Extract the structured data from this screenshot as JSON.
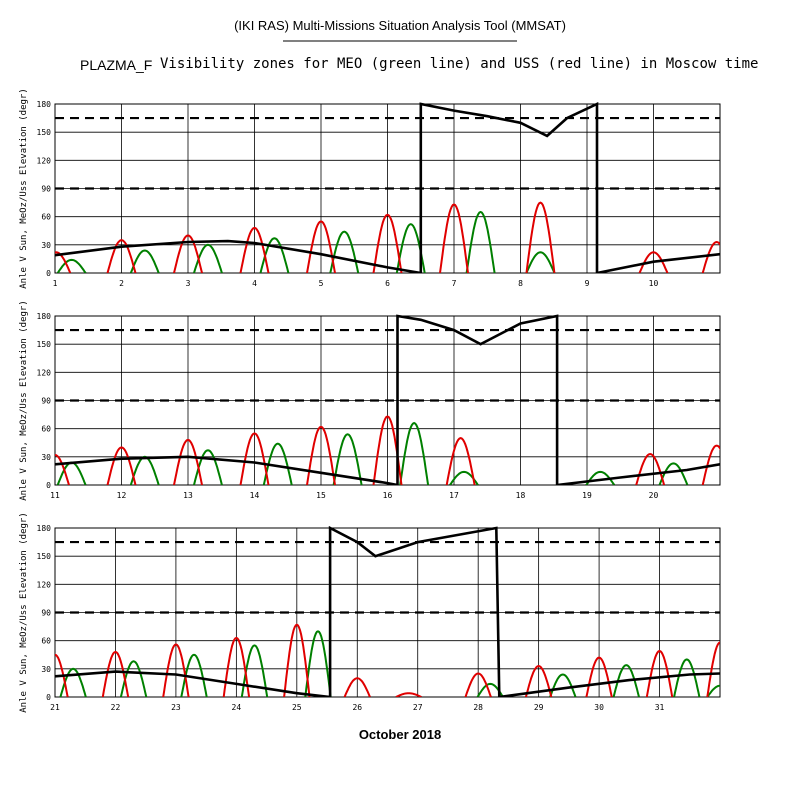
{
  "header": {
    "title": "(IKI RAS) Multi-Missions Situation Analysis Tool (MMSAT)",
    "mission": "PLAZMA_F",
    "subtitle": "Visibility zones for MEO (green line) and USS (red line) in Moscow time"
  },
  "colors": {
    "meo": "#008000",
    "uss": "#e00000",
    "sun": "#000000"
  },
  "chart_data": {
    "type": "line",
    "xlabel": "October 2018",
    "ylabel": "Anle V Sun, MeOz/Uss Elevation (degr)",
    "yticks": [
      0,
      30,
      60,
      90,
      120,
      150,
      180
    ],
    "reference_lines": [
      90,
      165
    ],
    "grid": true,
    "panels": [
      {
        "xlim": [
          1,
          11
        ],
        "xticks": [
          1,
          2,
          3,
          4,
          5,
          6,
          7,
          8,
          9,
          10
        ],
        "sun_angle": [
          [
            1,
            19
          ],
          [
            2,
            28
          ],
          [
            3,
            33
          ],
          [
            3.6,
            34
          ],
          [
            4,
            32
          ],
          [
            5,
            20
          ],
          [
            6,
            6
          ],
          [
            6.5,
            0
          ],
          [
            6.5,
            180
          ],
          [
            7,
            173
          ],
          [
            7.5,
            167
          ],
          [
            8,
            160
          ],
          [
            8.4,
            146
          ],
          [
            8.7,
            165
          ],
          [
            9.15,
            180
          ],
          [
            9.15,
            0
          ],
          [
            10,
            12
          ],
          [
            11,
            20
          ]
        ],
        "uss_passes": [
          [
            1.02,
            22
          ],
          [
            2,
            35
          ],
          [
            3,
            40
          ],
          [
            4,
            48
          ],
          [
            5,
            55
          ],
          [
            6,
            62
          ],
          [
            7,
            73
          ],
          [
            8.3,
            75
          ],
          [
            10,
            22
          ],
          [
            10.95,
            33
          ]
        ],
        "meo_passes": [
          [
            1.25,
            14
          ],
          [
            2.35,
            24
          ],
          [
            3.3,
            30
          ],
          [
            4.3,
            37
          ],
          [
            5.35,
            44
          ],
          [
            6.35,
            52
          ],
          [
            7.4,
            65
          ],
          [
            8.3,
            22
          ]
        ]
      },
      {
        "xlim": [
          11,
          21
        ],
        "xticks": [
          11,
          12,
          13,
          14,
          15,
          16,
          17,
          18,
          19,
          20
        ],
        "sun_angle": [
          [
            11,
            22
          ],
          [
            12,
            28
          ],
          [
            13,
            30
          ],
          [
            14,
            24
          ],
          [
            15,
            13
          ],
          [
            16,
            2
          ],
          [
            16.15,
            0
          ],
          [
            16.15,
            180
          ],
          [
            16.5,
            176
          ],
          [
            17,
            165
          ],
          [
            17.4,
            150
          ],
          [
            18,
            172
          ],
          [
            18.55,
            180
          ],
          [
            18.55,
            0
          ],
          [
            19.5,
            8
          ],
          [
            20.5,
            16
          ],
          [
            21,
            22
          ]
        ],
        "uss_passes": [
          [
            11,
            32
          ],
          [
            12,
            40
          ],
          [
            13,
            48
          ],
          [
            14,
            55
          ],
          [
            15,
            62
          ],
          [
            16,
            73
          ],
          [
            17.1,
            50
          ],
          [
            19.95,
            33
          ],
          [
            20.95,
            42
          ]
        ],
        "meo_passes": [
          [
            11.25,
            24
          ],
          [
            12.35,
            30
          ],
          [
            13.3,
            37
          ],
          [
            14.35,
            44
          ],
          [
            15.4,
            54
          ],
          [
            16.4,
            66
          ],
          [
            17.15,
            14
          ],
          [
            19.2,
            14
          ],
          [
            20.3,
            23
          ]
        ]
      },
      {
        "xlim": [
          21,
          32
        ],
        "xticks": [
          21,
          22,
          23,
          24,
          25,
          26,
          27,
          28,
          29,
          30,
          31
        ],
        "sun_angle": [
          [
            21,
            22
          ],
          [
            22,
            27
          ],
          [
            23,
            24
          ],
          [
            24,
            14
          ],
          [
            25,
            4
          ],
          [
            25.55,
            0
          ],
          [
            25.55,
            180
          ],
          [
            26,
            165
          ],
          [
            26.3,
            150
          ],
          [
            27,
            165
          ],
          [
            28.3,
            180
          ],
          [
            28.35,
            0
          ],
          [
            29.5,
            10
          ],
          [
            30.5,
            18
          ],
          [
            31.5,
            24
          ],
          [
            32,
            25
          ]
        ],
        "uss_passes": [
          [
            21,
            45
          ],
          [
            22,
            48
          ],
          [
            23,
            56
          ],
          [
            24,
            63
          ],
          [
            25,
            77
          ],
          [
            26,
            20
          ],
          [
            26.85,
            4
          ],
          [
            28,
            25
          ],
          [
            29,
            33
          ],
          [
            30,
            42
          ],
          [
            31,
            49
          ],
          [
            32,
            58
          ]
        ],
        "meo_passes": [
          [
            21.3,
            30
          ],
          [
            22.3,
            38
          ],
          [
            23.3,
            45
          ],
          [
            24.3,
            55
          ],
          [
            25.35,
            70
          ],
          [
            28.2,
            14
          ],
          [
            29.4,
            24
          ],
          [
            30.45,
            34
          ],
          [
            31.45,
            40
          ],
          [
            32,
            12
          ]
        ]
      }
    ]
  }
}
